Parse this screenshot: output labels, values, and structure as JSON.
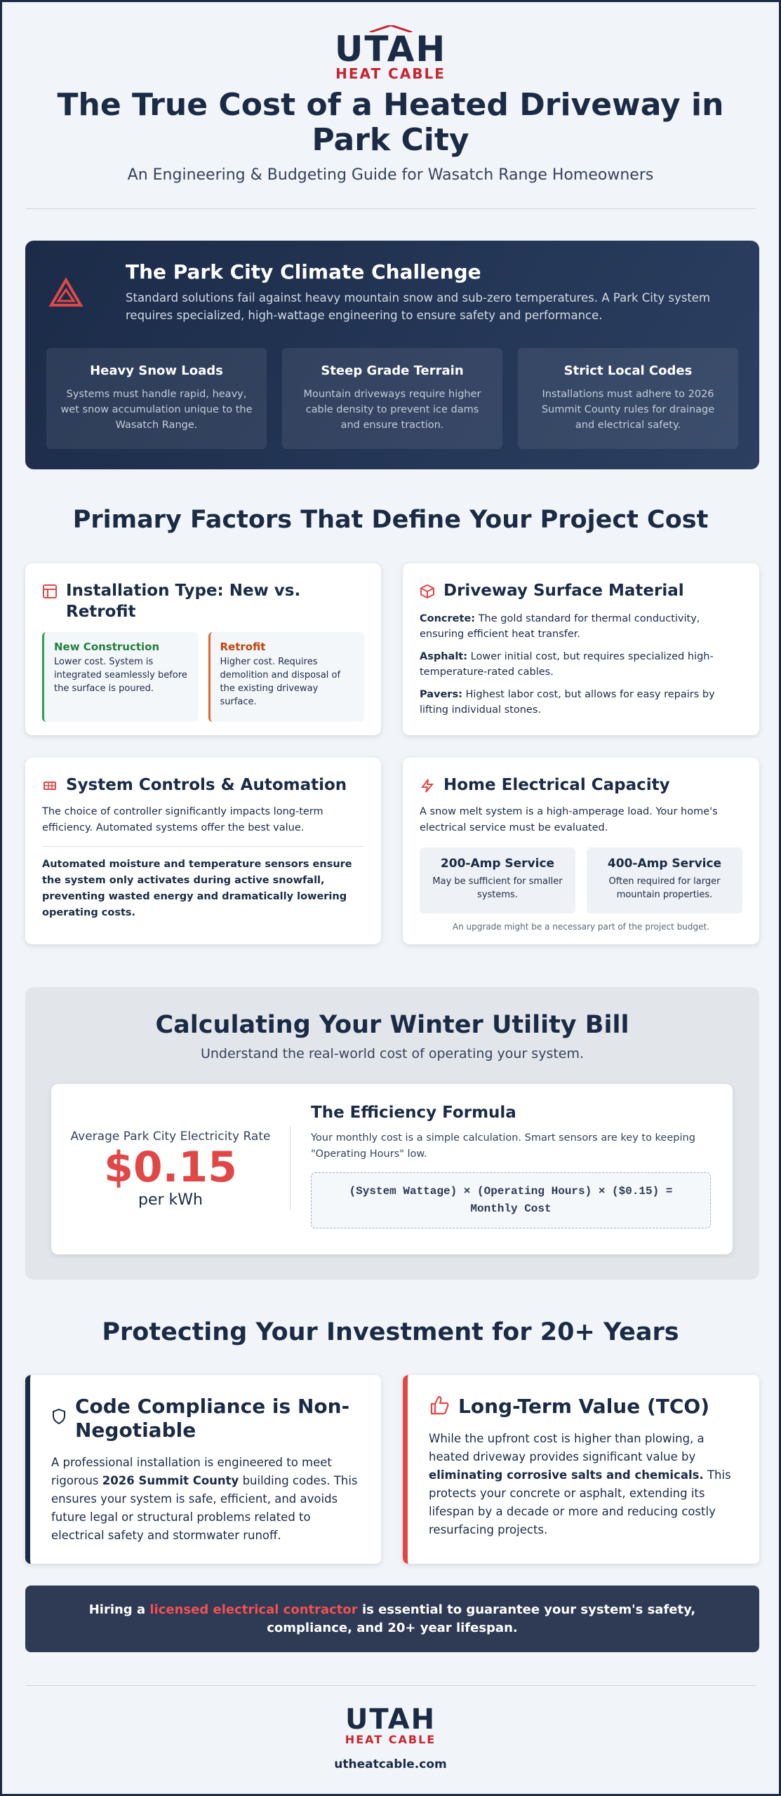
{
  "header": {
    "logo_top": "UTAH",
    "logo_bottom": "HEAT CABLE",
    "title": "The True Cost of a Heated Driveway in Park City",
    "subtitle": "An Engineering & Budgeting Guide for Wasatch Range Homeowners"
  },
  "climate": {
    "title": "The Park City Climate Challenge",
    "text": "Standard solutions fail against heavy mountain snow and sub-zero temperatures. A Park City system requires specialized, high-wattage engineering to ensure safety and performance.",
    "items": [
      {
        "title": "Heavy Snow Loads",
        "text": "Systems must handle rapid, heavy, wet snow accumulation unique to the Wasatch Range."
      },
      {
        "title": "Steep Grade Terrain",
        "text": "Mountain driveways require higher cable density to prevent ice dams and ensure traction."
      },
      {
        "title": "Strict Local Codes",
        "text": "Installations must adhere to 2026 Summit County rules for drainage and electrical safety."
      }
    ]
  },
  "factors": {
    "title": "Primary Factors That Define Your Project Cost",
    "installation": {
      "title": "Installation Type: New vs. Retrofit",
      "options": [
        {
          "title": "New Construction",
          "text": "Lower cost. System is integrated seamlessly before the surface is poured."
        },
        {
          "title": "Retrofit",
          "text": "Higher cost. Requires demolition and disposal of the existing driveway surface."
        }
      ]
    },
    "material": {
      "title": "Driveway Surface Material",
      "items": [
        {
          "label": "Concrete:",
          "text": "The gold standard for thermal conductivity, ensuring efficient heat transfer."
        },
        {
          "label": "Asphalt:",
          "text": "Lower initial cost, but requires specialized high-temperature-rated cables."
        },
        {
          "label": "Pavers:",
          "text": "Highest labor cost, but allows for easy repairs by lifting individual stones."
        }
      ]
    },
    "controls": {
      "title": "System Controls & Automation",
      "text": "The choice of controller significantly impacts long-term efficiency. Automated systems offer the best value.",
      "highlight": "Automated moisture and temperature sensors ensure the system only activates during active snowfall, preventing wasted energy and dramatically lowering operating costs."
    },
    "electrical": {
      "title": "Home Electrical Capacity",
      "text": "A snow melt system is a high-amperage load. Your home's electrical service must be evaluated.",
      "options": [
        {
          "title": "200-Amp Service",
          "text": "May be sufficient for smaller systems."
        },
        {
          "title": "400-Amp Service",
          "text": "Often required for larger mountain properties."
        }
      ],
      "note": "An upgrade might be a necessary part of the project budget."
    }
  },
  "utility": {
    "title": "Calculating Your Winter Utility Bill",
    "subtitle": "Understand the real-world cost of operating your system.",
    "rate_label": "Average Park City Electricity Rate",
    "rate": "$0.15",
    "rate_unit": "per kWh",
    "formula_title": "The Efficiency Formula",
    "formula_text": "Your monthly cost is a simple calculation. Smart sensors are key to keeping \"Operating Hours\" low.",
    "formula": "(System Wattage) × (Operating Hours) × ($0.15) = Monthly Cost"
  },
  "investment": {
    "title": "Protecting Your Investment for 20+ Years",
    "compliance": {
      "title": "Code Compliance is Non-Negotiable",
      "text_parts": [
        "A professional installation is engineered to meet rigorous",
        "2026 Summit County",
        "building codes. This ensures your system is safe, efficient, and avoids future legal or structural problems related to electrical safety and stormwater runoff."
      ]
    },
    "value": {
      "title": "Long-Term Value (TCO)",
      "text_parts": [
        "While the upfront cost is higher than plowing, a heated driveway provides significant value by",
        "eliminating corrosive salts and chemicals.",
        "This protects your concrete or asphalt, extending its lifespan by a decade or more and reducing costly resurfacing projects."
      ]
    }
  },
  "banner": {
    "parts": [
      "Hiring a",
      "licensed electrical contractor",
      "is essential to guarantee your system's safety, compliance, and 20+ year lifespan."
    ]
  },
  "footer": {
    "logo_top": "UTAH",
    "logo_bottom": "HEAT CABLE",
    "url": "utheatcable.com"
  }
}
